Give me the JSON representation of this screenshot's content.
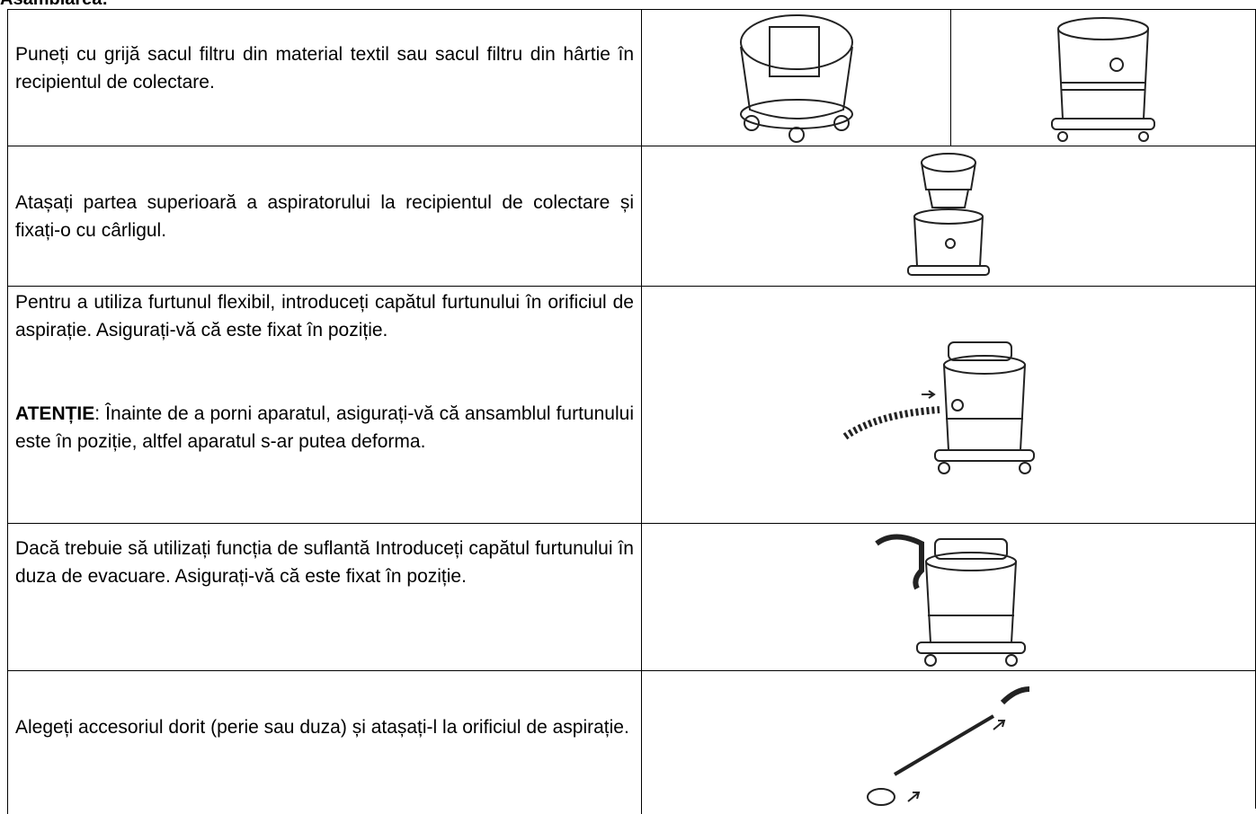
{
  "header": {
    "title": "Asamblarea:"
  },
  "table": {
    "rows": [
      {
        "text": "Puneți cu grijă sacul filtru din material textil sau sacul filtru din hârtie în recipientul de colectare."
      },
      {
        "text": "Atașați partea superioară a aspiratorului la recipientul de colectare și fixați-o cu cârligul."
      },
      {
        "text": "Pentru a utiliza furtunul flexibil, introduceți capătul furtunului în orificiul de aspirație. Asigurați-vă că este fixat în poziție.",
        "warning": {
          "label": "ATENȚIE",
          "text": ": Înainte de a porni aparatul, asigurați-vă că ansamblul furtunului este în poziție, altfel aparatul s-ar putea deforma."
        }
      },
      {
        "text": "Dacă trebuie să utilizați funcția de suflantă Introduceți capătul furtunului în duza de evacuare. Asigurați-vă că este fixat în poziție."
      },
      {
        "text": "Alegeți accesoriul dorit (perie sau duza) și atașați-l la orificiul de aspirație."
      }
    ]
  }
}
